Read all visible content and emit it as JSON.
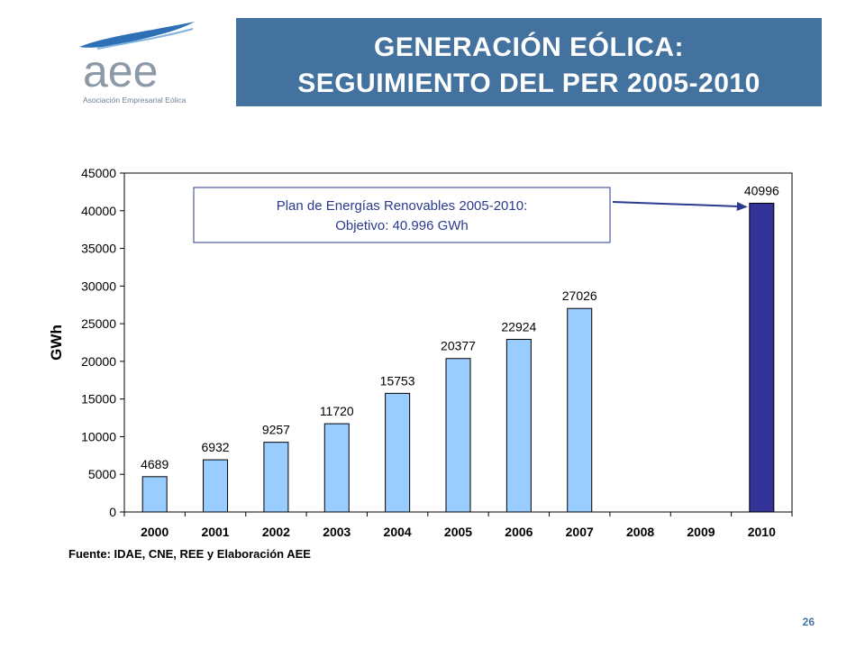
{
  "header": {
    "title_line1": "GENERACIÓN EÓLICA:",
    "title_line2": "SEGUIMIENTO DEL PER 2005-2010"
  },
  "logo": {
    "text": "aee",
    "subtitle": "Asociación Empresarial Eólica"
  },
  "page_number": "26",
  "colors": {
    "header_band": "#44729f",
    "bar_light": "#99ccff",
    "bar_dark": "#333399",
    "annotation_text": "#2b3b8f"
  },
  "chart_data": {
    "type": "bar",
    "categories": [
      "2000",
      "2001",
      "2002",
      "2003",
      "2004",
      "2005",
      "2006",
      "2007",
      "2008",
      "2009",
      "2010"
    ],
    "values": [
      4689,
      6932,
      9257,
      11720,
      15753,
      20377,
      22924,
      27026,
      null,
      null,
      40996
    ],
    "data_labels": [
      "4689",
      "6932",
      "9257",
      "11720",
      "15753",
      "20377",
      "22924",
      "27026",
      "",
      "",
      "40996"
    ],
    "highlight_category": "2010",
    "ylabel": "GWh",
    "ylim": [
      0,
      45000
    ],
    "yticks": [
      "0",
      "5000",
      "10000",
      "15000",
      "20000",
      "25000",
      "30000",
      "35000",
      "40000",
      "45000"
    ],
    "grid": false,
    "annotation": {
      "line1": "Plan de Energías Renovables 2005-2010:",
      "line2": "Objetivo: 40.996 GWh",
      "points_to": "2010"
    },
    "source": "Fuente: IDAE, CNE, REE y Elaboración AEE"
  }
}
